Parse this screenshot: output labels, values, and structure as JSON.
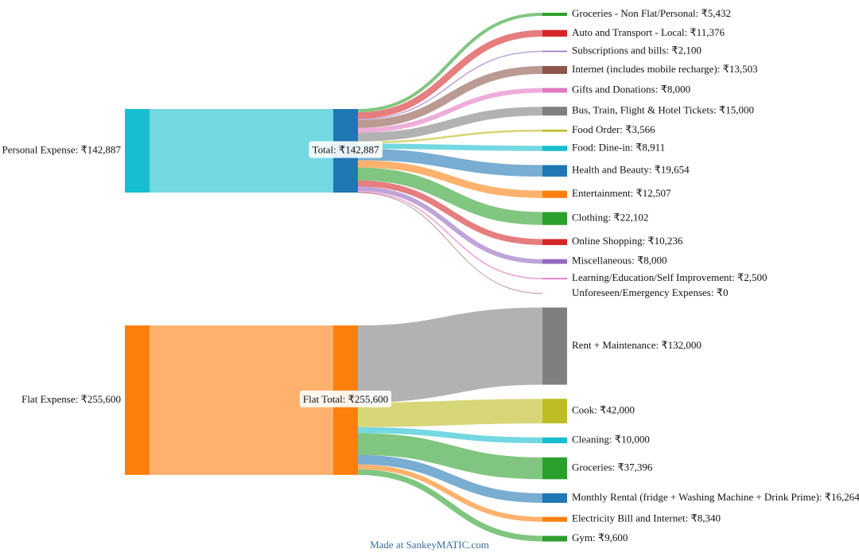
{
  "chart_data": {
    "type": "sankey",
    "nodes": [
      {
        "label": "Personal Expense: ₹142,887",
        "value": 142887,
        "color": "#17becf"
      },
      {
        "label": "Total: ₹142,887",
        "value": 142887,
        "color": "#1f77b4"
      },
      {
        "label": "Groceries - Non Flat/Personal: ₹5,432",
        "value": 5432,
        "color": "#2ca02c"
      },
      {
        "label": "Auto and Transport - Local: ₹11,376",
        "value": 11376,
        "color": "#d62728"
      },
      {
        "label": "Subscriptions and bills: ₹2,100",
        "value": 2100,
        "color": "#9467bd"
      },
      {
        "label": "Internet (includes mobile recharge): ₹13,503",
        "value": 13503,
        "color": "#8c564b"
      },
      {
        "label": "Gifts and Donations: ₹8,000",
        "value": 8000,
        "color": "#e377c2"
      },
      {
        "label": "Bus, Train, Flight & Hotel Tickets: ₹15,000",
        "value": 15000,
        "color": "#7f7f7f"
      },
      {
        "label": "Food Order: ₹3,566",
        "value": 3566,
        "color": "#bcbd22"
      },
      {
        "label": "Food: Dine-in: ₹8,911",
        "value": 8911,
        "color": "#17becf"
      },
      {
        "label": "Health and Beauty: ₹19,654",
        "value": 19654,
        "color": "#1f77b4"
      },
      {
        "label": "Entertainment: ₹12,507",
        "value": 12507,
        "color": "#ff7f0e"
      },
      {
        "label": "Clothing: ₹22,102",
        "value": 22102,
        "color": "#2ca02c"
      },
      {
        "label": "Online Shopping: ₹10,236",
        "value": 10236,
        "color": "#d62728"
      },
      {
        "label": "Miscellaneous: ₹8,000",
        "value": 8000,
        "color": "#9467bd"
      },
      {
        "label": "Learning/Education/Self Improvement: ₹2,500",
        "value": 2500,
        "color": "#e377c2"
      },
      {
        "label": "Unforeseen/Emergency Expenses: ₹0",
        "value": 0,
        "color": "#8c564b"
      },
      {
        "label": "Flat Expense: ₹255,600",
        "value": 255600,
        "color": "#ff7f0e"
      },
      {
        "label": "Flat Total: ₹255,600",
        "value": 255600,
        "color": "#ff7f0e"
      },
      {
        "label": "Rent + Maintenance: ₹132,000",
        "value": 132000,
        "color": "#7f7f7f"
      },
      {
        "label": "Cook: ₹42,000",
        "value": 42000,
        "color": "#bcbd22"
      },
      {
        "label": "Cleaning: ₹10,000",
        "value": 10000,
        "color": "#17becf"
      },
      {
        "label": "Groceries: ₹37,396",
        "value": 37396,
        "color": "#2ca02c"
      },
      {
        "label": "Monthly Rental (fridge + Washing Machine + Drink Prime): ₹16,264",
        "value": 16264,
        "color": "#1f77b4"
      },
      {
        "label": "Electricity Bill and Internet: ₹8,340",
        "value": 8340,
        "color": "#ff7f0e"
      },
      {
        "label": "Gym: ₹9,600",
        "value": 9600,
        "color": "#2ca02c"
      }
    ],
    "links": [
      {
        "source": 0,
        "target": 1,
        "value": 142887
      },
      {
        "source": 1,
        "target": 2,
        "value": 5432
      },
      {
        "source": 1,
        "target": 3,
        "value": 11376
      },
      {
        "source": 1,
        "target": 4,
        "value": 2100
      },
      {
        "source": 1,
        "target": 5,
        "value": 13503
      },
      {
        "source": 1,
        "target": 6,
        "value": 8000
      },
      {
        "source": 1,
        "target": 7,
        "value": 15000
      },
      {
        "source": 1,
        "target": 8,
        "value": 3566
      },
      {
        "source": 1,
        "target": 9,
        "value": 8911
      },
      {
        "source": 1,
        "target": 10,
        "value": 19654
      },
      {
        "source": 1,
        "target": 11,
        "value": 12507
      },
      {
        "source": 1,
        "target": 12,
        "value": 22102
      },
      {
        "source": 1,
        "target": 13,
        "value": 10236
      },
      {
        "source": 1,
        "target": 14,
        "value": 8000
      },
      {
        "source": 1,
        "target": 15,
        "value": 2500
      },
      {
        "source": 1,
        "target": 16,
        "value": 0
      },
      {
        "source": 17,
        "target": 18,
        "value": 255600
      },
      {
        "source": 18,
        "target": 19,
        "value": 132000
      },
      {
        "source": 18,
        "target": 20,
        "value": 42000
      },
      {
        "source": 18,
        "target": 21,
        "value": 10000
      },
      {
        "source": 18,
        "target": 22,
        "value": 37396
      },
      {
        "source": 18,
        "target": 23,
        "value": 16264
      },
      {
        "source": 18,
        "target": 24,
        "value": 8340
      },
      {
        "source": 18,
        "target": 25,
        "value": 9600
      }
    ],
    "footer": "Made at SankeyMATIC.com"
  }
}
